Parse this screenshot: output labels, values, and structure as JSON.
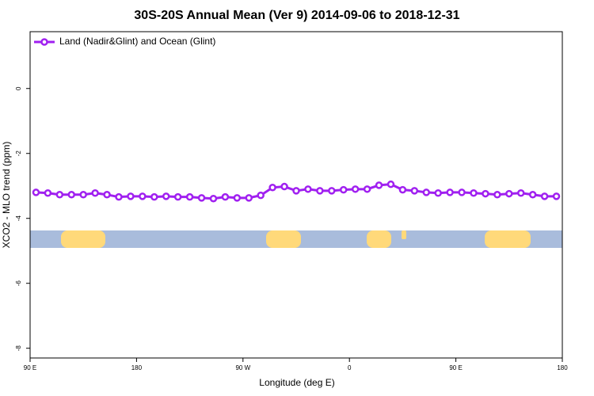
{
  "chart_data": {
    "type": "line",
    "title": "30S-20S Annual Mean (Ver 9)   2014-09-06 to 2018-12-31",
    "xlabel": "Longitude (deg E)",
    "ylabel": "XCO2 - MLO trend (ppm)",
    "x": [
      95,
      105,
      115,
      125,
      135,
      145,
      155,
      165,
      175,
      185,
      195,
      205,
      215,
      225,
      235,
      245,
      255,
      265,
      275,
      285,
      295,
      305,
      315,
      325,
      335,
      345,
      355,
      365,
      375,
      385,
      395,
      405,
      415,
      425,
      435,
      445,
      455,
      465,
      475,
      485,
      495,
      505,
      515,
      525,
      535
    ],
    "series": [
      {
        "name": "Land (Nadir&Glint) and Ocean (Glint)",
        "color": "#a020f0",
        "values": [
          -3.2,
          -3.22,
          -3.27,
          -3.27,
          -3.27,
          -3.22,
          -3.27,
          -3.34,
          -3.32,
          -3.32,
          -3.34,
          -3.32,
          -3.34,
          -3.34,
          -3.37,
          -3.39,
          -3.34,
          -3.37,
          -3.37,
          -3.29,
          -3.05,
          -3.02,
          -3.15,
          -3.1,
          -3.15,
          -3.15,
          -3.12,
          -3.1,
          -3.1,
          -2.98,
          -2.95,
          -3.12,
          -3.15,
          -3.2,
          -3.22,
          -3.2,
          -3.2,
          -3.22,
          -3.24,
          -3.27,
          -3.24,
          -3.22,
          -3.27,
          -3.32,
          -3.32
        ]
      }
    ],
    "xlim": [
      90,
      540
    ],
    "xticks": [
      {
        "value": 90,
        "label": "90 E"
      },
      180,
      {
        "value": 270,
        "label": "90 W"
      },
      {
        "value": 360,
        "label": "0"
      },
      {
        "value": 450,
        "label": "90 E"
      },
      {
        "value": 540,
        "label": "180"
      }
    ],
    "ylim": [
      -8.3,
      1.75
    ],
    "yticks": [
      0,
      -2,
      -4,
      -6,
      -8
    ],
    "legend": "top-left"
  }
}
